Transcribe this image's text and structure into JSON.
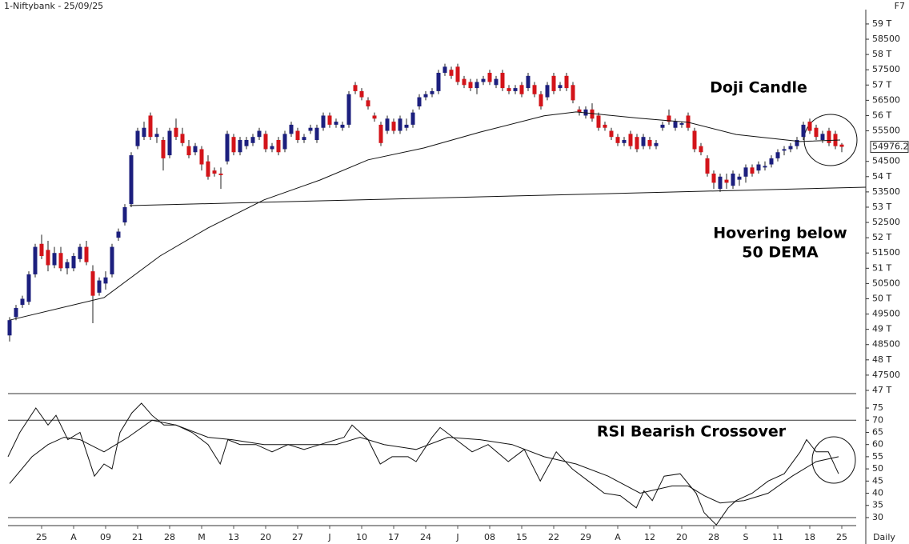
{
  "chart_data": [
    {
      "type": "candlestick",
      "title": "1-Niftybank - 25/09/25",
      "corner_label": "F7",
      "annotations": [
        "Doji Candle",
        "Hovering below",
        "50 DEMA"
      ],
      "up_color": "#1c1f7e",
      "down_color": "#d3141a",
      "xlim": [
        -1.5,
        133.5
      ],
      "ylim": [
        46895,
        59470
      ],
      "yticks": [
        {
          "value": 47000,
          "label": "47 T"
        },
        47500,
        {
          "value": 48000,
          "label": "48 T"
        },
        48500,
        {
          "value": 49000,
          "label": "49 T"
        },
        49500,
        {
          "value": 50000,
          "label": "50 T"
        },
        50500,
        {
          "value": 51000,
          "label": "51 T"
        },
        51500,
        {
          "value": 52000,
          "label": "52 T"
        },
        52500,
        {
          "value": 53000,
          "label": "53 T"
        },
        53500,
        {
          "value": 54000,
          "label": "54 T"
        },
        54500,
        55500,
        {
          "value": 56000,
          "label": "56 T"
        },
        56500,
        {
          "value": 57000,
          "label": "57 T"
        },
        57500,
        {
          "value": 58000,
          "label": "58 T"
        },
        58500,
        {
          "value": 59000,
          "label": "59 T"
        }
      ],
      "last_price": 54976.2,
      "ohlc": [
        [
          48800,
          49400,
          48600,
          49300
        ],
        [
          49400,
          49800,
          49300,
          49700
        ],
        [
          49800,
          50100,
          49700,
          50000
        ],
        [
          49900,
          50900,
          49800,
          50800
        ],
        [
          50800,
          51800,
          50700,
          51700
        ],
        [
          51800,
          52100,
          51300,
          51400
        ],
        [
          51600,
          51900,
          50900,
          51100
        ],
        [
          51100,
          51700,
          51000,
          51500
        ],
        [
          51500,
          51700,
          50900,
          51000
        ],
        [
          51000,
          51300,
          50800,
          51200
        ],
        [
          51000,
          51500,
          50900,
          51400
        ],
        [
          51300,
          51800,
          51200,
          51700
        ],
        [
          51700,
          51900,
          51100,
          51200
        ],
        [
          50900,
          51100,
          49200,
          50100
        ],
        [
          50200,
          50700,
          50100,
          50600
        ],
        [
          50500,
          50900,
          50300,
          50700
        ],
        [
          50800,
          51800,
          50700,
          51700
        ],
        [
          52000,
          52300,
          51900,
          52200
        ],
        [
          52500,
          53100,
          52400,
          53000
        ],
        [
          53100,
          54800,
          53000,
          54700
        ],
        [
          55000,
          55600,
          54900,
          55500
        ],
        [
          55300,
          55800,
          55200,
          55600
        ],
        [
          56000,
          56100,
          55200,
          55300
        ],
        [
          55300,
          55600,
          55100,
          55400
        ],
        [
          55200,
          55300,
          54200,
          54600
        ],
        [
          54700,
          55600,
          54600,
          55500
        ],
        [
          55600,
          55900,
          55200,
          55300
        ],
        [
          55400,
          55600,
          55000,
          55100
        ],
        [
          55000,
          55200,
          54600,
          54700
        ],
        [
          54800,
          55100,
          54700,
          55000
        ],
        [
          54900,
          55000,
          54200,
          54400
        ],
        [
          54500,
          54700,
          53900,
          54000
        ],
        [
          54200,
          54300,
          54000,
          54100
        ],
        [
          54100,
          54300,
          53600,
          54050
        ],
        [
          54500,
          55500,
          54400,
          55400
        ],
        [
          55300,
          55400,
          54700,
          54800
        ],
        [
          54800,
          55300,
          54700,
          55200
        ],
        [
          55000,
          55300,
          54900,
          55200
        ],
        [
          55100,
          55400,
          55000,
          55300
        ],
        [
          55300,
          55600,
          55200,
          55500
        ],
        [
          55400,
          55500,
          54800,
          54900
        ],
        [
          54900,
          55100,
          54800,
          55000
        ],
        [
          55200,
          55300,
          54700,
          54800
        ],
        [
          54900,
          55500,
          54800,
          55400
        ],
        [
          55400,
          55800,
          55300,
          55700
        ],
        [
          55500,
          55600,
          55100,
          55200
        ],
        [
          55200,
          55400,
          55100,
          55300
        ],
        [
          55500,
          55700,
          55400,
          55600
        ],
        [
          55200,
          55700,
          55100,
          55600
        ],
        [
          55600,
          56100,
          55500,
          56000
        ],
        [
          56000,
          56100,
          55600,
          55700
        ],
        [
          55700,
          55900,
          55600,
          55800
        ],
        [
          55600,
          55800,
          55500,
          55700
        ],
        [
          55700,
          56800,
          55600,
          56700
        ],
        [
          57000,
          57100,
          56700,
          56800
        ],
        [
          56800,
          56900,
          56500,
          56600
        ],
        [
          56500,
          56600,
          56200,
          56300
        ],
        [
          56000,
          56100,
          55800,
          55900
        ],
        [
          55700,
          55800,
          55000,
          55100
        ],
        [
          55500,
          56000,
          55400,
          55900
        ],
        [
          55800,
          55900,
          55400,
          55500
        ],
        [
          55500,
          56000,
          55400,
          55900
        ],
        [
          55600,
          55900,
          55500,
          55700
        ],
        [
          55700,
          56200,
          55600,
          56100
        ],
        [
          56300,
          56700,
          56200,
          56600
        ],
        [
          56600,
          56800,
          56500,
          56700
        ],
        [
          56700,
          56900,
          56600,
          56800
        ],
        [
          56800,
          57500,
          56700,
          57400
        ],
        [
          57400,
          57700,
          57300,
          57600
        ],
        [
          57500,
          57600,
          57200,
          57300
        ],
        [
          57600,
          57700,
          57000,
          57100
        ],
        [
          57200,
          57300,
          56900,
          57000
        ],
        [
          57100,
          57200,
          56800,
          56900
        ],
        [
          56900,
          57200,
          56700,
          57100
        ],
        [
          57100,
          57300,
          57000,
          57200
        ],
        [
          57400,
          57500,
          57000,
          57100
        ],
        [
          57000,
          57300,
          56900,
          57200
        ],
        [
          57400,
          57500,
          56800,
          56900
        ],
        [
          56900,
          57000,
          56700,
          56800
        ],
        [
          56800,
          57000,
          56700,
          56900
        ],
        [
          57000,
          57100,
          56600,
          56700
        ],
        [
          56900,
          57400,
          56800,
          57300
        ],
        [
          57000,
          57100,
          56600,
          56700
        ],
        [
          56700,
          56800,
          56200,
          56300
        ],
        [
          56600,
          57100,
          56500,
          57000
        ],
        [
          57300,
          57400,
          56700,
          56800
        ],
        [
          56900,
          57100,
          56800,
          57000
        ],
        [
          57300,
          57400,
          56800,
          56900
        ],
        [
          57000,
          57100,
          56400,
          56500
        ],
        [
          56200,
          56300,
          56000,
          56100
        ],
        [
          56000,
          56300,
          55900,
          56200
        ],
        [
          56200,
          56400,
          55800,
          55900
        ],
        [
          56000,
          56100,
          55500,
          55600
        ],
        [
          55700,
          55800,
          55500,
          55600
        ],
        [
          55500,
          55600,
          55200,
          55300
        ],
        [
          55300,
          55400,
          55000,
          55100
        ],
        [
          55100,
          55300,
          55000,
          55200
        ],
        [
          55400,
          55500,
          54900,
          55000
        ],
        [
          55300,
          55400,
          54800,
          54900
        ],
        [
          55000,
          55400,
          54900,
          55300
        ],
        [
          55200,
          55300,
          54900,
          55000
        ],
        [
          55000,
          55200,
          54900,
          55100
        ],
        [
          55600,
          55800,
          55500,
          55700
        ],
        [
          56000,
          56200,
          55700,
          55800
        ],
        [
          55600,
          55900,
          55500,
          55800
        ],
        [
          55700,
          55800,
          55600,
          55750
        ],
        [
          56000,
          56100,
          55500,
          55600
        ],
        [
          55500,
          55600,
          54800,
          54900
        ],
        [
          55000,
          55100,
          54700,
          54800
        ],
        [
          54600,
          54700,
          54000,
          54100
        ],
        [
          54100,
          54200,
          53600,
          53800
        ],
        [
          53600,
          54100,
          53500,
          54000
        ],
        [
          53900,
          54100,
          53600,
          53800
        ],
        [
          53700,
          54200,
          53600,
          54100
        ],
        [
          53900,
          54100,
          53700,
          54000
        ],
        [
          54000,
          54400,
          53800,
          54300
        ],
        [
          54300,
          54400,
          54000,
          54100
        ],
        [
          54200,
          54500,
          54100,
          54400
        ],
        [
          54300,
          54500,
          54200,
          54350
        ],
        [
          54400,
          54700,
          54300,
          54600
        ],
        [
          54600,
          54900,
          54500,
          54800
        ],
        [
          54850,
          55000,
          54700,
          54900
        ],
        [
          54900,
          55100,
          54800,
          55000
        ],
        [
          55000,
          55300,
          54900,
          55200
        ],
        [
          55300,
          55800,
          55200,
          55700
        ],
        [
          55800,
          55900,
          55400,
          55500
        ],
        [
          55600,
          55700,
          55200,
          55300
        ],
        [
          55200,
          55500,
          55100,
          55400
        ],
        [
          55500,
          55600,
          55000,
          55100
        ],
        [
          55400,
          55500,
          54900,
          55000
        ],
        [
          55050,
          55100,
          54800,
          54976.2
        ]
      ],
      "dema": {
        "color": "#111111",
        "x": [
          0,
          14.75,
          23.5,
          31,
          39.75,
          48.5,
          56,
          64.75,
          73.5,
          83.5,
          88.5,
          98.5,
          106,
          113.5,
          123.5,
          129.75
        ],
        "values": [
          49300,
          50040,
          51400,
          52320,
          53240,
          53890,
          54550,
          54940,
          55460,
          55990,
          56120,
          55910,
          55780,
          55380,
          55150,
          55200
        ]
      }
    },
    {
      "type": "line",
      "annotations": [
        "RSI Bearish Crossover"
      ],
      "xlabel": "Daily",
      "xlim": [
        -1.5,
        133.5
      ],
      "ylim": [
        26.7,
        80.6
      ],
      "yticks": [
        30,
        35,
        40,
        45,
        50,
        55,
        60,
        65,
        70,
        75
      ],
      "levels": [
        70,
        30
      ],
      "xticks": [
        {
          "value": 5,
          "label": "25"
        },
        {
          "value": 10,
          "label": "A"
        },
        {
          "value": 15,
          "label": "09"
        },
        {
          "value": 20,
          "label": "21"
        },
        {
          "value": 25,
          "label": "28"
        },
        {
          "value": 30,
          "label": "M"
        },
        {
          "value": 35,
          "label": "13"
        },
        {
          "value": 40,
          "label": "20"
        },
        {
          "value": 45,
          "label": "27"
        },
        {
          "value": 50,
          "label": "J"
        },
        {
          "value": 55,
          "label": "10"
        },
        {
          "value": 60,
          "label": "17"
        },
        {
          "value": 65,
          "label": "24"
        },
        {
          "value": 70,
          "label": "J"
        },
        {
          "value": 75,
          "label": "08"
        },
        {
          "value": 80,
          "label": "15"
        },
        {
          "value": 85,
          "label": "22"
        },
        {
          "value": 90,
          "label": "29"
        },
        {
          "value": 95,
          "label": "A"
        },
        {
          "value": 100,
          "label": "12"
        },
        {
          "value": 105,
          "label": "20"
        },
        {
          "value": 110,
          "label": "28"
        },
        {
          "value": 115,
          "label": "S"
        },
        {
          "value": 120,
          "label": "11"
        },
        {
          "value": 125,
          "label": "18"
        },
        {
          "value": 130,
          "label": "25"
        }
      ],
      "series": [
        {
          "color": "#111111",
          "x": [
            -0.25,
            1.6,
            4.1,
            6,
            7.25,
            9.1,
            11,
            13.25,
            14.75,
            16,
            17.25,
            19.1,
            20.6,
            22.25,
            24.1,
            26,
            28.5,
            31,
            32.9,
            34.1,
            36,
            38.5,
            41,
            43.5,
            46,
            48.5,
            52.25,
            53.5,
            56,
            57.9,
            59.75,
            62.25,
            63.5,
            66,
            67.25,
            69.75,
            72.25,
            74.75,
            77.9,
            80.4,
            82.9,
            85.4,
            87.9,
            90.4,
            92.9,
            95.4,
            97.9,
            99.1,
            100.4,
            102.25,
            104.75,
            107.25,
            108.5,
            110.4,
            112.25,
            113.5,
            116,
            118.5,
            121,
            123.5,
            124.5,
            126,
            127.9,
            129.5
          ],
          "values": [
            55,
            65,
            75,
            68,
            72,
            62,
            65,
            47,
            52,
            50,
            65,
            73,
            77,
            72,
            68,
            68,
            65,
            60,
            52,
            62,
            60,
            60,
            57,
            60,
            58,
            60,
            63,
            68,
            62,
            52,
            55,
            55,
            53,
            63,
            67,
            62,
            57,
            60,
            53,
            58,
            45,
            57,
            50,
            45,
            40,
            39,
            34,
            41,
            37,
            47,
            48,
            40,
            32,
            27,
            34,
            37,
            40,
            45,
            48,
            57,
            62,
            57,
            57,
            48
          ]
        },
        {
          "color": "#111111",
          "x": [
            0,
            3.5,
            6,
            8.5,
            11,
            14.75,
            18.5,
            22.25,
            26,
            31,
            34.75,
            39.75,
            46,
            51,
            54.75,
            58.5,
            63.5,
            68.5,
            73.5,
            78.5,
            83.5,
            88.5,
            93.5,
            98.5,
            103.5,
            106,
            108.5,
            111,
            114.75,
            118.5,
            122.25,
            126,
            129.5
          ],
          "values": [
            44,
            55,
            60,
            63,
            62,
            57,
            63,
            70,
            68,
            63,
            62,
            60,
            60,
            60,
            63,
            60,
            58,
            63,
            62,
            60,
            55,
            52,
            47,
            40,
            43,
            43,
            39,
            36,
            37,
            40,
            47,
            53,
            55
          ]
        }
      ]
    }
  ]
}
